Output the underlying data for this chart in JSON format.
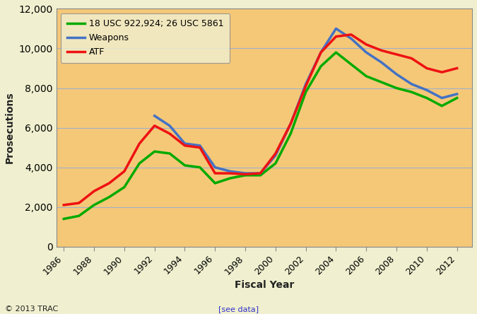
{
  "years": [
    1986,
    1987,
    1988,
    1989,
    1990,
    1991,
    1992,
    1993,
    1994,
    1995,
    1996,
    1997,
    1998,
    1999,
    2000,
    2001,
    2002,
    2003,
    2004,
    2005,
    2006,
    2007,
    2008,
    2009,
    2010,
    2011,
    2012
  ],
  "usc_line": [
    1400,
    1550,
    2100,
    2500,
    3000,
    4200,
    4800,
    4700,
    4100,
    4000,
    3200,
    3450,
    3600,
    3600,
    4200,
    5700,
    7800,
    9100,
    9800,
    9200,
    8600,
    8300,
    8000,
    7800,
    7500,
    7100,
    7500
  ],
  "weapons_line": [
    null,
    null,
    null,
    null,
    null,
    null,
    6600,
    6100,
    5200,
    5100,
    4000,
    3800,
    3700,
    3700,
    4600,
    6200,
    8200,
    9800,
    11000,
    10500,
    9800,
    9300,
    8700,
    8200,
    7900,
    7500,
    7700
  ],
  "atf_line": [
    2100,
    2200,
    2800,
    3200,
    3800,
    5200,
    6100,
    5700,
    5100,
    5000,
    3700,
    3700,
    3650,
    3700,
    4700,
    6200,
    8100,
    9800,
    10600,
    10700,
    10200,
    9900,
    9700,
    9500,
    9000,
    8800,
    9000
  ],
  "usc_color": "#00aa00",
  "weapons_color": "#4472c4",
  "atf_color": "#ee1111",
  "fig_bg_color": "#f0f0d0",
  "plot_bg_color": "#f5c878",
  "legend_bg_color": "#f0f0d0",
  "grid_color": "#a0b0c8",
  "spine_color": "#888888",
  "ylabel": "Prosecutions",
  "xlabel": "Fiscal Year",
  "ylim": [
    0,
    12000
  ],
  "yticks": [
    0,
    2000,
    4000,
    6000,
    8000,
    10000,
    12000
  ],
  "xticks": [
    1986,
    1988,
    1990,
    1992,
    1994,
    1996,
    1998,
    2000,
    2002,
    2004,
    2006,
    2008,
    2010,
    2012
  ],
  "legend_labels": [
    "18 USC 922,924; 26 USC 5861",
    "Weapons",
    "ATF"
  ],
  "copyright": "© 2013 TRAC",
  "see_data": "[see data]",
  "line_width": 2.5
}
